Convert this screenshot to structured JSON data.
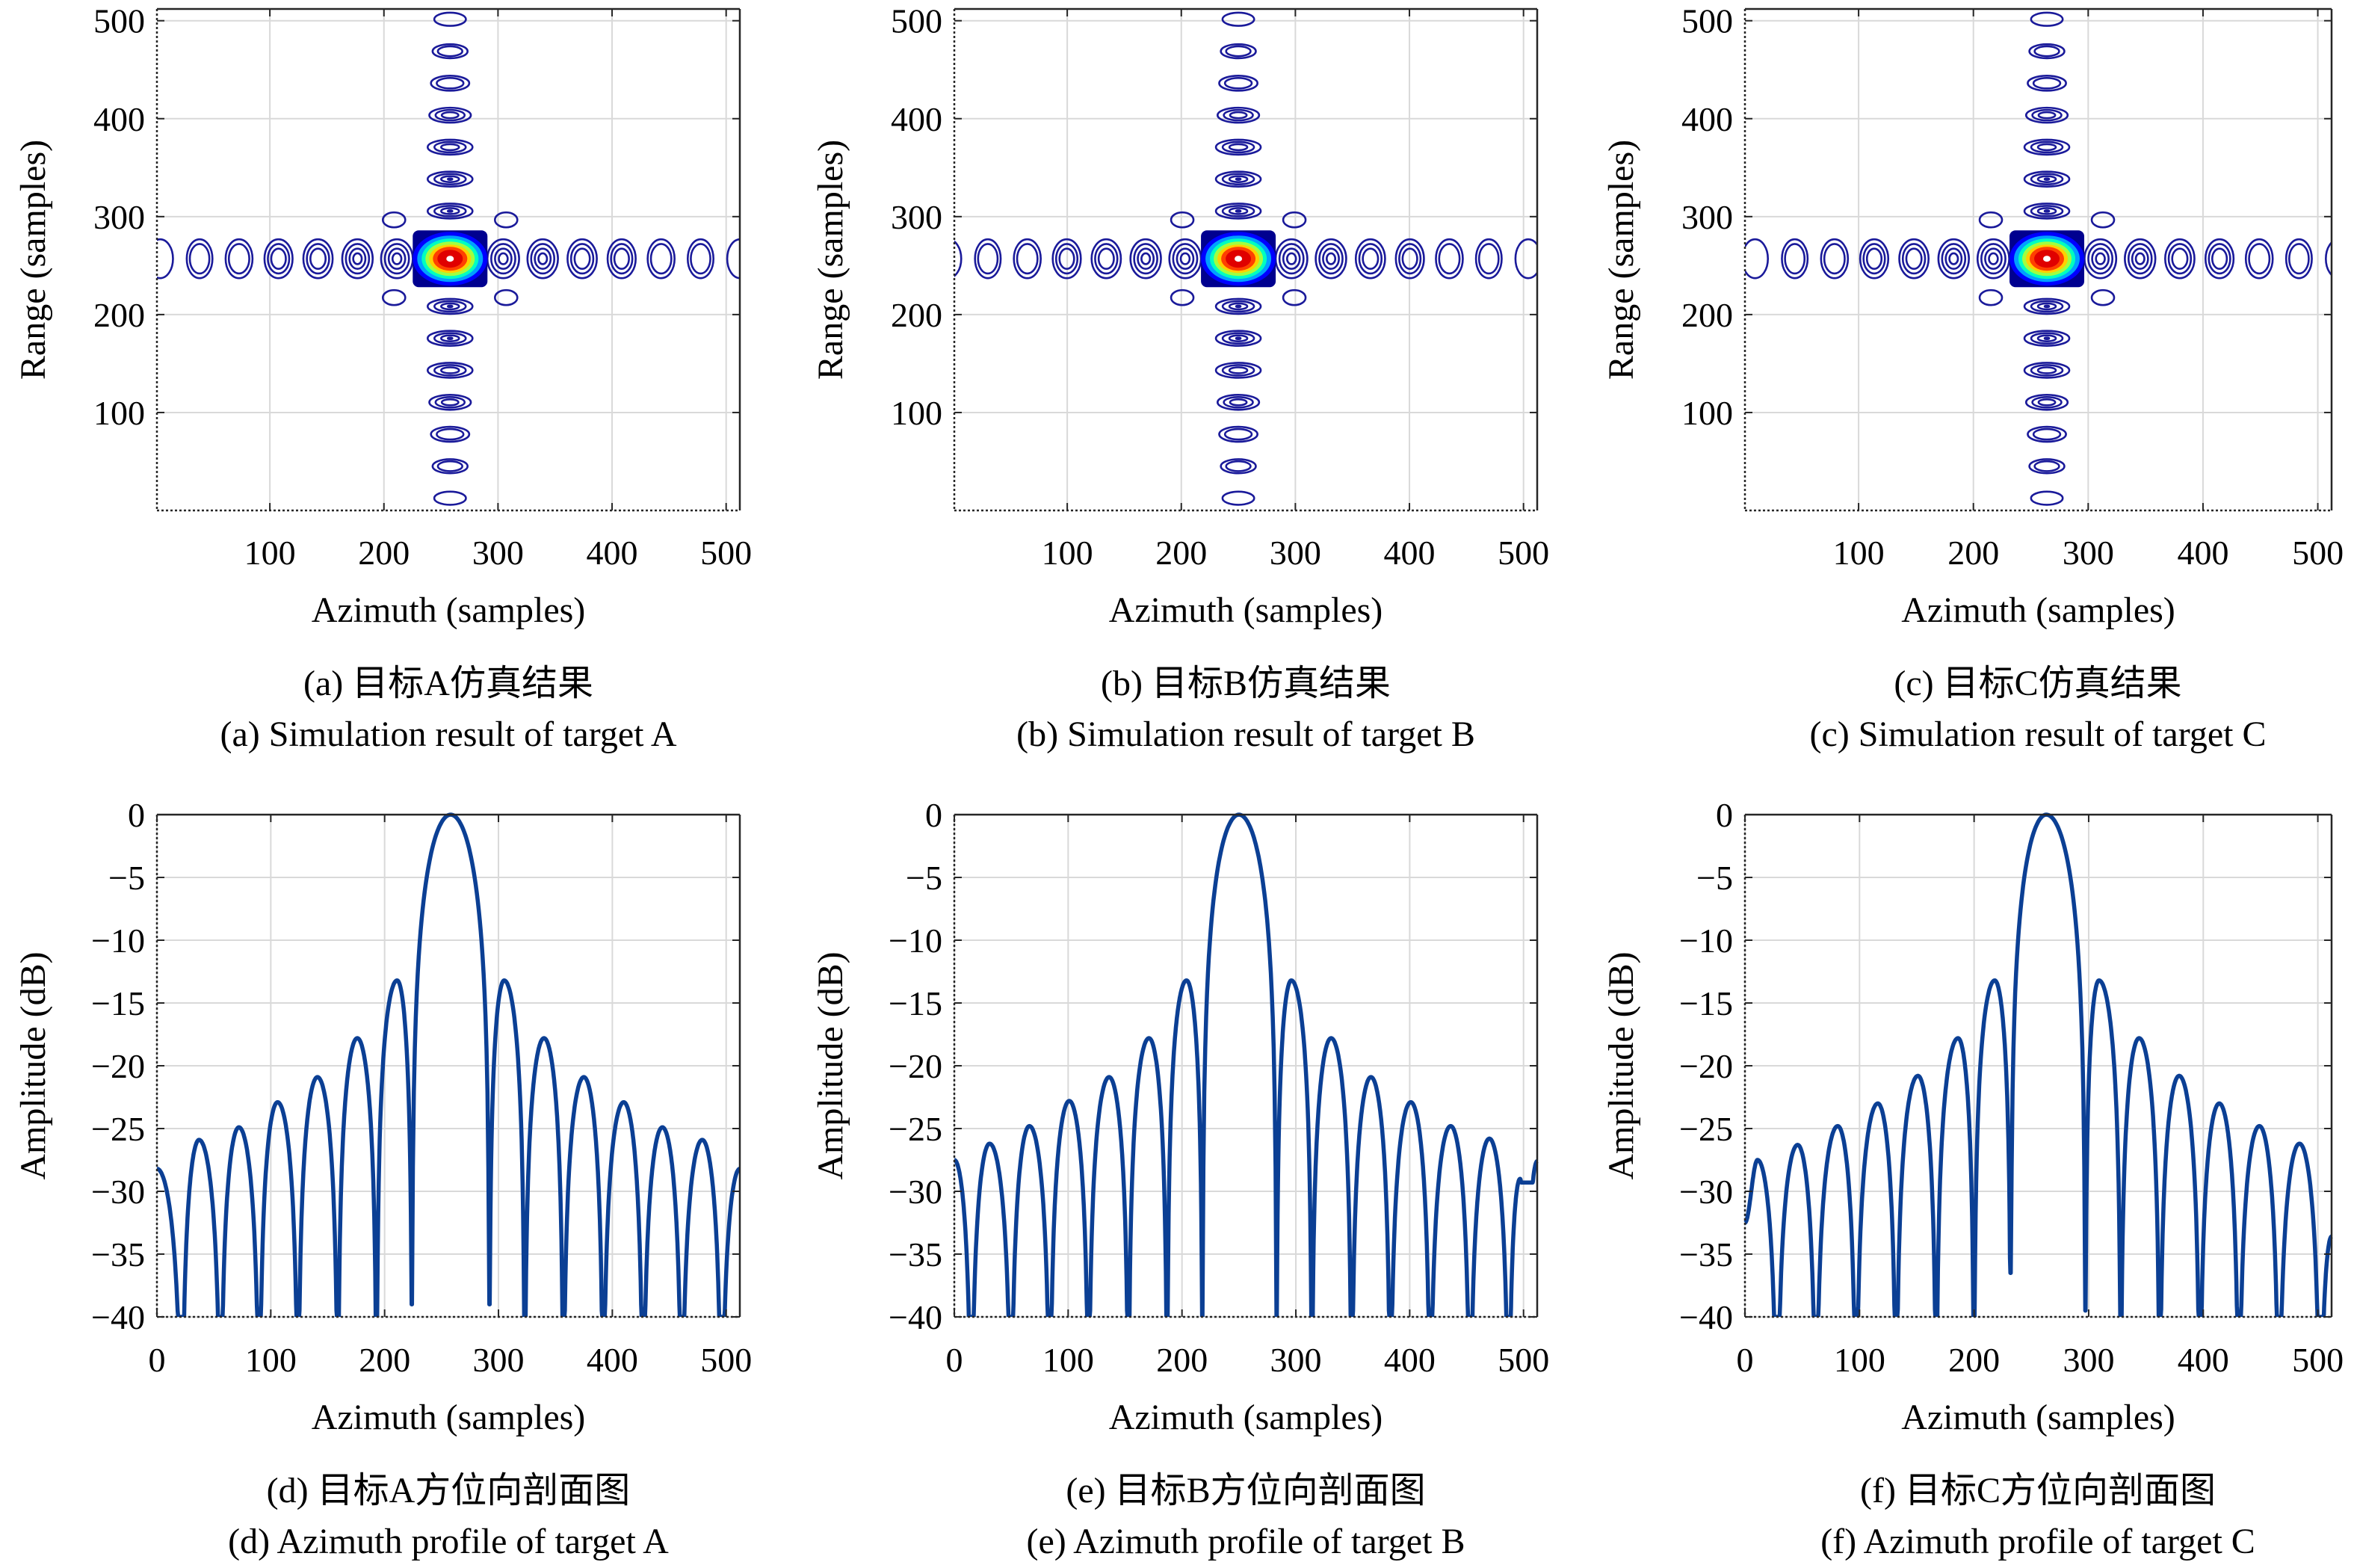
{
  "figure": {
    "panels": [
      {
        "id": "a",
        "caption_cn": "(a) 目标A仿真结果",
        "caption_en": "(a) Simulation result of target A"
      },
      {
        "id": "b",
        "caption_cn": "(b) 目标B仿真结果",
        "caption_en": "(b) Simulation result of target B"
      },
      {
        "id": "c",
        "caption_cn": "(c) 目标C仿真结果",
        "caption_en": "(c) Simulation result of target C"
      },
      {
        "id": "d",
        "caption_cn": "(d) 目标A方位向剖面图",
        "caption_en": "(d) Azimuth profile of target A"
      },
      {
        "id": "e",
        "caption_cn": "(e) 目标B方位向剖面图",
        "caption_en": "(e) Azimuth profile of target B"
      },
      {
        "id": "f",
        "caption_cn": "(f) 目标C方位向剖面图",
        "caption_en": "(f) Azimuth profile of target C"
      }
    ]
  },
  "chart_data": [
    {
      "panel": "a",
      "type": "heatmap",
      "subtype": "contour",
      "title": "",
      "xlabel": "Azimuth (samples)",
      "ylabel": "Range (samples)",
      "xlim": [
        1,
        512
      ],
      "ylim": [
        1,
        512
      ],
      "xticks": [
        100,
        200,
        300,
        400,
        500
      ],
      "yticks": [
        100,
        200,
        300,
        400,
        500
      ],
      "grid": true,
      "colormap": [
        "#00008f",
        "#0000ff",
        "#00a0ff",
        "#00ffc0",
        "#a0ff40",
        "#ffd000",
        "#ff4000",
        "#e00000",
        "#ffffff"
      ],
      "target_center": {
        "azimuth": 258,
        "range": 257
      },
      "azimuth_sidelobe_count": 8,
      "range_sidelobe_count": 10
    },
    {
      "panel": "b",
      "type": "heatmap",
      "subtype": "contour",
      "title": "",
      "xlabel": "Azimuth (samples)",
      "ylabel": "Range (samples)",
      "xlim": [
        1,
        512
      ],
      "ylim": [
        1,
        512
      ],
      "xticks": [
        100,
        200,
        300,
        400,
        500
      ],
      "yticks": [
        100,
        200,
        300,
        400,
        500
      ],
      "grid": true,
      "colormap": [
        "#00008f",
        "#0000ff",
        "#00a0ff",
        "#00ffc0",
        "#a0ff40",
        "#ffd000",
        "#ff4000",
        "#e00000",
        "#ffffff"
      ],
      "target_center": {
        "azimuth": 250,
        "range": 257
      },
      "azimuth_sidelobe_count": 8,
      "range_sidelobe_count": 10
    },
    {
      "panel": "c",
      "type": "heatmap",
      "subtype": "contour",
      "title": "",
      "xlabel": "Azimuth (samples)",
      "ylabel": "Range (samples)",
      "xlim": [
        1,
        512
      ],
      "ylim": [
        1,
        512
      ],
      "xticks": [
        100,
        200,
        300,
        400,
        500
      ],
      "yticks": [
        100,
        200,
        300,
        400,
        500
      ],
      "grid": true,
      "colormap": [
        "#00008f",
        "#0000ff",
        "#00a0ff",
        "#00ffc0",
        "#a0ff40",
        "#ffd000",
        "#ff4000",
        "#e00000",
        "#ffffff"
      ],
      "target_center": {
        "azimuth": 264,
        "range": 257
      },
      "azimuth_sidelobe_count": 8,
      "range_sidelobe_count": 10
    },
    {
      "panel": "d",
      "type": "line",
      "title": "",
      "xlabel": "Azimuth (samples)",
      "ylabel": "Amplitude (dB)",
      "xlim": [
        0,
        512
      ],
      "ylim": [
        -40,
        0
      ],
      "xticks": [
        0,
        100,
        200,
        300,
        400,
        500
      ],
      "yticks": [
        0,
        -5,
        -10,
        -15,
        -20,
        -25,
        -30,
        -35,
        -40
      ],
      "grid": true,
      "series": [
        {
          "name": "Azimuth profile A",
          "color": "#0b3f94",
          "peaks": [
            {
              "x": 0,
              "y": -28.2
            },
            {
              "x": 37,
              "y": -25.9
            },
            {
              "x": 72,
              "y": -24.9
            },
            {
              "x": 106,
              "y": -22.9
            },
            {
              "x": 141,
              "y": -20.9
            },
            {
              "x": 176,
              "y": -17.8
            },
            {
              "x": 211,
              "y": -13.2
            },
            {
              "x": 258,
              "y": 0.0
            },
            {
              "x": 305,
              "y": -13.2
            },
            {
              "x": 340,
              "y": -17.8
            },
            {
              "x": 375,
              "y": -20.9
            },
            {
              "x": 410,
              "y": -22.9
            },
            {
              "x": 444,
              "y": -24.9
            },
            {
              "x": 479,
              "y": -25.9
            },
            {
              "x": 512,
              "y": -28.2
            }
          ],
          "nulls": [
            {
              "x": 22,
              "y": -40
            },
            {
              "x": 56,
              "y": -40
            },
            {
              "x": 90,
              "y": -40
            },
            {
              "x": 124,
              "y": -40
            },
            {
              "x": 159,
              "y": -40
            },
            {
              "x": 193,
              "y": -40
            },
            {
              "x": 224,
              "y": -39.0
            },
            {
              "x": 292,
              "y": -39.0
            },
            {
              "x": 323,
              "y": -40
            },
            {
              "x": 357,
              "y": -40
            },
            {
              "x": 392,
              "y": -40
            },
            {
              "x": 427,
              "y": -40
            },
            {
              "x": 461,
              "y": -40
            },
            {
              "x": 496,
              "y": -40
            }
          ]
        }
      ]
    },
    {
      "panel": "e",
      "type": "line",
      "title": "",
      "xlabel": "Azimuth (samples)",
      "ylabel": "Amplitude (dB)",
      "xlim": [
        0,
        512
      ],
      "ylim": [
        -40,
        0
      ],
      "xticks": [
        0,
        100,
        200,
        300,
        400,
        500
      ],
      "yticks": [
        0,
        -5,
        -10,
        -15,
        -20,
        -25,
        -30,
        -35,
        -40
      ],
      "grid": true,
      "series": [
        {
          "name": "Azimuth profile B",
          "color": "#0b3f94",
          "peaks": [
            {
              "x": 0,
              "y": -27.5
            },
            {
              "x": 31,
              "y": -26.2
            },
            {
              "x": 66,
              "y": -24.8
            },
            {
              "x": 101,
              "y": -22.8
            },
            {
              "x": 136,
              "y": -20.9
            },
            {
              "x": 171,
              "y": -17.8
            },
            {
              "x": 204,
              "y": -13.2
            },
            {
              "x": 250,
              "y": 0.0
            },
            {
              "x": 296,
              "y": -13.2
            },
            {
              "x": 331,
              "y": -17.8
            },
            {
              "x": 366,
              "y": -20.9
            },
            {
              "x": 401,
              "y": -22.9
            },
            {
              "x": 436,
              "y": -24.8
            },
            {
              "x": 470,
              "y": -25.8
            },
            {
              "x": 497,
              "y": -29.0
            },
            {
              "x": 512,
              "y": -27.6
            }
          ],
          "nulls": [
            {
              "x": 15,
              "y": -40
            },
            {
              "x": 50,
              "y": -40
            },
            {
              "x": 84,
              "y": -40
            },
            {
              "x": 118,
              "y": -40
            },
            {
              "x": 153,
              "y": -40
            },
            {
              "x": 187,
              "y": -40
            },
            {
              "x": 218,
              "y": -40
            },
            {
              "x": 283,
              "y": -40
            },
            {
              "x": 314,
              "y": -40
            },
            {
              "x": 349,
              "y": -40
            },
            {
              "x": 383,
              "y": -40
            },
            {
              "x": 418,
              "y": -40
            },
            {
              "x": 453,
              "y": -40
            },
            {
              "x": 487,
              "y": -40
            },
            {
              "x": 502,
              "y": -29.3
            }
          ]
        }
      ]
    },
    {
      "panel": "f",
      "type": "line",
      "title": "",
      "xlabel": "Azimuth (samples)",
      "ylabel": "Amplitude (dB)",
      "xlim": [
        0,
        512
      ],
      "ylim": [
        -40,
        0
      ],
      "xticks": [
        0,
        100,
        200,
        300,
        400,
        500
      ],
      "yticks": [
        0,
        -5,
        -10,
        -15,
        -20,
        -25,
        -30,
        -35,
        -40
      ],
      "grid": true,
      "series": [
        {
          "name": "Azimuth profile C",
          "color": "#0b3f94",
          "peaks": [
            {
              "x": 0,
              "y": -32.5
            },
            {
              "x": 11,
              "y": -27.5
            },
            {
              "x": 46,
              "y": -26.3
            },
            {
              "x": 81,
              "y": -24.8
            },
            {
              "x": 116,
              "y": -23.0
            },
            {
              "x": 151,
              "y": -20.8
            },
            {
              "x": 186,
              "y": -17.8
            },
            {
              "x": 218,
              "y": -13.2
            },
            {
              "x": 263,
              "y": 0.0
            },
            {
              "x": 309,
              "y": -13.2
            },
            {
              "x": 344,
              "y": -17.8
            },
            {
              "x": 379,
              "y": -20.8
            },
            {
              "x": 414,
              "y": -23.0
            },
            {
              "x": 449,
              "y": -24.8
            },
            {
              "x": 484,
              "y": -26.2
            },
            {
              "x": 512,
              "y": -33.6
            }
          ],
          "nulls": [
            {
              "x": 28,
              "y": -40
            },
            {
              "x": 62,
              "y": -40
            },
            {
              "x": 97,
              "y": -40
            },
            {
              "x": 132,
              "y": -40
            },
            {
              "x": 167,
              "y": -40
            },
            {
              "x": 200,
              "y": -40
            },
            {
              "x": 232,
              "y": -36.5
            },
            {
              "x": 297,
              "y": -39.5
            },
            {
              "x": 328,
              "y": -40
            },
            {
              "x": 362,
              "y": -40
            },
            {
              "x": 397,
              "y": -40
            },
            {
              "x": 431,
              "y": -40
            },
            {
              "x": 466,
              "y": -40
            },
            {
              "x": 502,
              "y": -40
            }
          ]
        }
      ]
    }
  ]
}
